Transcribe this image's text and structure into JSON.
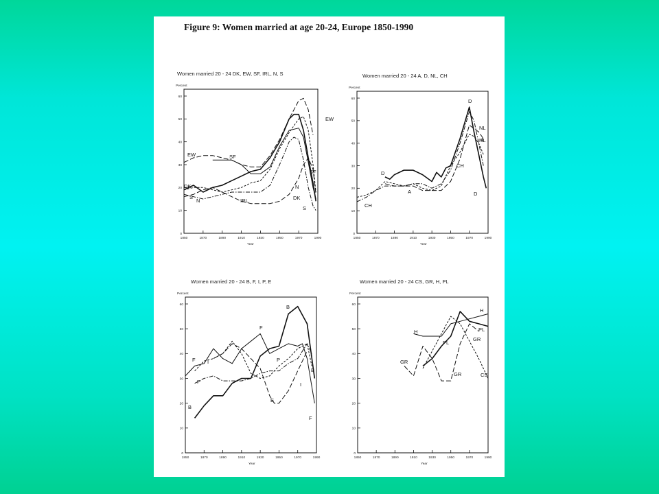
{
  "background": {
    "color_top": "#00d79a",
    "color_mid": "#00f2f2",
    "color_bottom": "#00d192"
  },
  "figure_title": "Figure 9: Women married at age 20-24, Europe 1850-1990",
  "chart_data": [
    {
      "type": "line",
      "title": "Women married 20 - 24 DK, EW, SF, IRL, N, S",
      "ylabel": "Percent",
      "xlabel": "Year",
      "xlim": [
        1850,
        1990
      ],
      "ylim": [
        0,
        60
      ],
      "xticks": [
        1850,
        1870,
        1890,
        1910,
        1930,
        1950,
        1970,
        1990
      ],
      "yticks": [
        0,
        10,
        20,
        30,
        40,
        50,
        60
      ],
      "series": [
        {
          "name": "DK",
          "style": "solid-thick",
          "x": [
            1850,
            1860,
            1870,
            1880,
            1890,
            1900,
            1910,
            1920,
            1930,
            1940,
            1950,
            1960,
            1965,
            1970,
            1975,
            1980,
            1985,
            1988
          ],
          "y": [
            19,
            21,
            18,
            20,
            21,
            23,
            25,
            27,
            28,
            33,
            40,
            50,
            52,
            52,
            45,
            33,
            22,
            14
          ]
        },
        {
          "name": "EW",
          "style": "long-dash",
          "x": [
            1850,
            1860,
            1870,
            1880,
            1890,
            1900,
            1910,
            1920,
            1930,
            1940,
            1950,
            1960,
            1970,
            1975,
            1980,
            1985
          ],
          "y": [
            31,
            33,
            34,
            34,
            33,
            32,
            30,
            29,
            29,
            34,
            41,
            50,
            58,
            59,
            54,
            43
          ]
        },
        {
          "name": "SF",
          "style": "solid-thin",
          "x": [
            1880,
            1890,
            1900,
            1910,
            1920,
            1930,
            1940,
            1950,
            1960,
            1970,
            1975,
            1980,
            1985,
            1988
          ],
          "y": [
            32,
            32,
            32,
            30,
            26,
            26,
            29,
            38,
            45,
            46,
            42,
            31,
            20,
            15
          ]
        },
        {
          "name": "IRL",
          "style": "long-dash",
          "x": [
            1850,
            1860,
            1870,
            1880,
            1890,
            1900,
            1910,
            1920,
            1930,
            1940,
            1950,
            1960,
            1970,
            1975,
            1980,
            1985,
            1988
          ],
          "y": [
            16,
            17,
            19,
            20,
            18,
            16,
            14,
            13,
            13,
            13,
            14,
            17,
            24,
            30,
            33,
            28,
            17
          ]
        },
        {
          "name": "N",
          "style": "short-dash",
          "x": [
            1850,
            1860,
            1870,
            1880,
            1890,
            1900,
            1910,
            1920,
            1930,
            1940,
            1950,
            1960,
            1970,
            1975,
            1980,
            1985,
            1988
          ],
          "y": [
            19,
            20,
            20,
            19,
            18,
            19,
            20,
            22,
            23,
            28,
            37,
            44,
            50,
            51,
            45,
            30,
            18
          ]
        },
        {
          "name": "S",
          "style": "dash-dot",
          "x": [
            1850,
            1860,
            1870,
            1880,
            1890,
            1900,
            1910,
            1920,
            1930,
            1940,
            1950,
            1960,
            1965,
            1970,
            1975,
            1980,
            1985,
            1988
          ],
          "y": [
            17,
            16,
            15,
            16,
            17,
            18,
            18,
            18,
            18,
            21,
            30,
            40,
            42,
            41,
            32,
            20,
            12,
            10
          ]
        }
      ],
      "annotations": [
        "EW",
        "EW",
        "SF",
        "SF",
        "DK",
        "DK",
        "N",
        "N",
        "S",
        "S",
        "IRL"
      ]
    },
    {
      "type": "line",
      "title": "Women married 20 - 24 A, D, NL, CH",
      "ylabel": "Percent",
      "xlabel": "Year",
      "xlim": [
        1850,
        1990
      ],
      "ylim": [
        0,
        60
      ],
      "xticks": [
        1850,
        1870,
        1890,
        1910,
        1930,
        1950,
        1970,
        1990
      ],
      "yticks": [
        0,
        10,
        20,
        30,
        40,
        50,
        60
      ],
      "series": [
        {
          "name": "A",
          "style": "long-dash",
          "x": [
            1880,
            1890,
            1900,
            1910,
            1920,
            1930,
            1940,
            1950,
            1960,
            1970,
            1980,
            1985
          ],
          "y": [
            22,
            21,
            21,
            21,
            19,
            19,
            19,
            23,
            33,
            48,
            45,
            42
          ]
        },
        {
          "name": "D",
          "style": "solid-thick",
          "x": [
            1880,
            1885,
            1890,
            1900,
            1910,
            1920,
            1930,
            1935,
            1940,
            1945,
            1950,
            1960,
            1970,
            1975,
            1980,
            1985,
            1988
          ],
          "y": [
            25,
            24,
            26,
            28,
            28,
            26,
            23,
            27,
            25,
            29,
            30,
            42,
            56,
            45,
            35,
            25,
            20
          ]
        },
        {
          "name": "NL",
          "style": "dash-dot",
          "x": [
            1850,
            1855,
            1860,
            1870,
            1880,
            1890,
            1900,
            1910,
            1920,
            1930,
            1940,
            1950,
            1960,
            1970,
            1975,
            1980,
            1985
          ],
          "y": [
            14,
            15,
            16,
            19,
            21,
            21,
            21,
            22,
            22,
            20,
            22,
            28,
            40,
            54,
            50,
            40,
            30
          ]
        },
        {
          "name": "CH",
          "style": "short-dash",
          "x": [
            1850,
            1860,
            1870,
            1880,
            1890,
            1900,
            1910,
            1920,
            1930,
            1940,
            1950,
            1960,
            1970,
            1975,
            1980,
            1985
          ],
          "y": [
            16,
            17,
            19,
            23,
            22,
            21,
            22,
            20,
            19,
            21,
            30,
            36,
            44,
            43,
            40,
            35
          ]
        }
      ],
      "annotations": [
        "D",
        "D",
        "D",
        "NL",
        "NL",
        "A",
        "A",
        "CH",
        "CH"
      ]
    },
    {
      "type": "line",
      "title": "Women married 20 - 24 B, F, I, P, E",
      "ylabel": "Percent",
      "xlabel": "Year",
      "xlim": [
        1850,
        1990
      ],
      "ylim": [
        0,
        60
      ],
      "xticks": [
        1850,
        1870,
        1890,
        1910,
        1930,
        1950,
        1970,
        1990
      ],
      "yticks": [
        0,
        10,
        20,
        30,
        40,
        50,
        60
      ],
      "series": [
        {
          "name": "B",
          "style": "solid-thick",
          "x": [
            1860,
            1870,
            1880,
            1890,
            1900,
            1910,
            1920,
            1930,
            1940,
            1950,
            1960,
            1970,
            1980,
            1988
          ],
          "y": [
            14,
            19,
            23,
            23,
            28,
            30,
            30,
            39,
            42,
            43,
            56,
            59,
            52,
            30
          ]
        },
        {
          "name": "F",
          "style": "solid-thin",
          "x": [
            1850,
            1860,
            1870,
            1880,
            1890,
            1900,
            1910,
            1920,
            1930,
            1940,
            1950,
            1960,
            1970,
            1975,
            1980,
            1988
          ],
          "y": [
            31,
            35,
            36,
            42,
            38,
            36,
            42,
            45,
            48,
            40,
            42,
            44,
            43,
            44,
            38,
            20
          ]
        },
        {
          "name": "I",
          "style": "short-dash",
          "x": [
            1860,
            1870,
            1880,
            1890,
            1900,
            1910,
            1920,
            1930,
            1940,
            1950,
            1960,
            1970,
            1980,
            1985
          ],
          "y": [
            33,
            37,
            38,
            40,
            45,
            40,
            32,
            30,
            31,
            35,
            38,
            42,
            44,
            35
          ]
        },
        {
          "name": "P",
          "style": "dash-dot",
          "x": [
            1860,
            1870,
            1880,
            1890,
            1900,
            1910,
            1920,
            1930,
            1940,
            1950,
            1960,
            1970,
            1980,
            1985
          ],
          "y": [
            28,
            30,
            31,
            29,
            29,
            29,
            30,
            32,
            33,
            33,
            36,
            38,
            44,
            40
          ]
        },
        {
          "name": "E",
          "style": "long-dash",
          "x": [
            1880,
            1890,
            1900,
            1910,
            1920,
            1930,
            1940,
            1945,
            1950,
            1960,
            1970,
            1980
          ],
          "y": [
            38,
            40,
            44,
            42,
            38,
            34,
            23,
            20,
            20,
            25,
            33,
            41
          ]
        }
      ],
      "annotations": [
        "B",
        "B",
        "B",
        "F",
        "F",
        "F",
        "I",
        "I",
        "P",
        "P",
        "E"
      ]
    },
    {
      "type": "line",
      "title": "Women married 20 - 24 CS, GR, H, PL",
      "ylabel": "Percent",
      "xlabel": "Year",
      "xlim": [
        1850,
        1990
      ],
      "ylim": [
        0,
        60
      ],
      "xticks": [
        1850,
        1870,
        1890,
        1910,
        1930,
        1950,
        1970,
        1990
      ],
      "yticks": [
        0,
        10,
        20,
        30,
        40,
        50,
        60
      ],
      "series": [
        {
          "name": "CS",
          "style": "short-dash",
          "x": [
            1920,
            1930,
            1940,
            1950,
            1960,
            1970,
            1980,
            1990
          ],
          "y": [
            34,
            41,
            48,
            55,
            52,
            45,
            38,
            30
          ]
        },
        {
          "name": "GR",
          "style": "long-dash",
          "x": [
            1900,
            1910,
            1920,
            1930,
            1940,
            1950,
            1960,
            1970,
            1980
          ],
          "y": [
            35,
            31,
            43,
            38,
            29,
            29,
            44,
            52,
            49
          ]
        },
        {
          "name": "H",
          "style": "solid-thin",
          "x": [
            1910,
            1920,
            1930,
            1940,
            1950,
            1960,
            1970,
            1980,
            1990
          ],
          "y": [
            48,
            47,
            47,
            47,
            52,
            53,
            54,
            55,
            56
          ]
        },
        {
          "name": "PL",
          "style": "solid-thick",
          "x": [
            1920,
            1930,
            1940,
            1950,
            1960,
            1970,
            1980,
            1990
          ],
          "y": [
            35,
            38,
            43,
            47,
            57,
            53,
            52,
            51
          ]
        }
      ],
      "annotations": [
        "H",
        "H",
        "PL",
        "PL",
        "GR",
        "GR",
        "GR",
        "CS"
      ]
    }
  ]
}
